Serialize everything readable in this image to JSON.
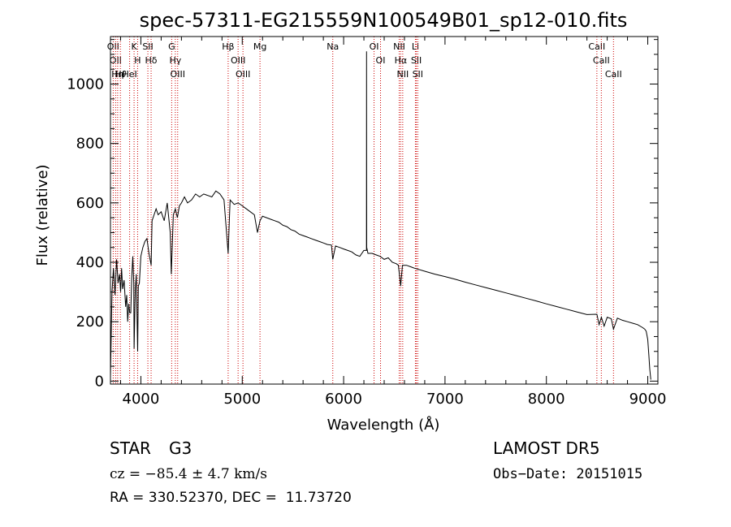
{
  "chart_data": {
    "type": "line",
    "title": "spec-57311-EG215559N100549B01_sp12-010.fits",
    "xlabel": "Wavelength (Å)",
    "ylabel": "Flux (relative)",
    "xlim": [
      3700,
      9100
    ],
    "ylim": [
      -10,
      1160
    ],
    "xticks": [
      4000,
      5000,
      6000,
      7000,
      8000,
      9000
    ],
    "yticks": [
      0,
      200,
      400,
      600,
      800,
      1000
    ],
    "x_minor_step": 200,
    "y_minor_step": 50,
    "grid": false,
    "series": [
      {
        "color": "#000000",
        "x": [
          3700,
          3715,
          3730,
          3745,
          3760,
          3775,
          3790,
          3800,
          3810,
          3820,
          3835,
          3850,
          3860,
          3870,
          3880,
          3890,
          3900,
          3910,
          3920,
          3930,
          3933,
          3945,
          3955,
          3968,
          3975,
          3985,
          4000,
          4020,
          4040,
          4060,
          4080,
          4101,
          4110,
          4130,
          4150,
          4170,
          4200,
          4230,
          4260,
          4290,
          4300,
          4320,
          4340,
          4360,
          4380,
          4400,
          4430,
          4460,
          4500,
          4540,
          4580,
          4620,
          4660,
          4700,
          4740,
          4780,
          4820,
          4861,
          4880,
          4920,
          4960,
          5000,
          5040,
          5080,
          5120,
          5150,
          5175,
          5200,
          5240,
          5280,
          5320,
          5360,
          5400,
          5440,
          5480,
          5520,
          5560,
          5600,
          5640,
          5680,
          5720,
          5760,
          5800,
          5840,
          5880,
          5893,
          5920,
          5960,
          6000,
          6040,
          6080,
          6120,
          6160,
          6200,
          6225,
          6226,
          6228,
          6240,
          6280,
          6320,
          6360,
          6400,
          6440,
          6480,
          6520,
          6540,
          6563,
          6580,
          6620,
          6660,
          6700,
          6800,
          6900,
          7000,
          7100,
          7200,
          7300,
          7400,
          7500,
          7600,
          7700,
          7800,
          7900,
          8000,
          8100,
          8200,
          8300,
          8400,
          8498,
          8520,
          8542,
          8570,
          8600,
          8640,
          8662,
          8700,
          8750,
          8800,
          8850,
          8900,
          8950,
          8970,
          8985,
          9000,
          9010,
          9020,
          9030
        ],
        "y": [
          15,
          300,
          380,
          290,
          410,
          330,
          360,
          300,
          380,
          310,
          340,
          250,
          290,
          200,
          260,
          230,
          230,
          350,
          420,
          330,
          110,
          310,
          360,
          100,
          320,
          330,
          420,
          450,
          470,
          480,
          430,
          390,
          540,
          560,
          580,
          560,
          570,
          540,
          600,
          500,
          360,
          560,
          580,
          550,
          590,
          600,
          620,
          600,
          610,
          630,
          620,
          630,
          625,
          620,
          640,
          630,
          610,
          430,
          610,
          595,
          600,
          590,
          580,
          570,
          560,
          500,
          540,
          555,
          550,
          545,
          540,
          535,
          525,
          520,
          510,
          505,
          495,
          490,
          485,
          480,
          475,
          470,
          465,
          460,
          458,
          410,
          455,
          450,
          445,
          440,
          435,
          425,
          420,
          440,
          440,
          1110,
          450,
          430,
          430,
          425,
          420,
          410,
          415,
          400,
          395,
          390,
          320,
          390,
          390,
          385,
          380,
          370,
          360,
          352,
          343,
          333,
          324,
          315,
          306,
          297,
          288,
          279,
          270,
          260,
          251,
          242,
          233,
          224,
          225,
          190,
          215,
          185,
          215,
          210,
          175,
          212,
          205,
          200,
          195,
          190,
          180,
          175,
          168,
          140,
          90,
          40,
          5
        ]
      }
    ],
    "line_markers": [
      {
        "x": 3727,
        "label": "OII"
      },
      {
        "x": 3751,
        "label": "OII"
      },
      {
        "x": 3771,
        "label": "Hη"
      },
      {
        "x": 3798,
        "label": "H𝜃"
      },
      {
        "x": 3889,
        "label": "HeI"
      },
      {
        "x": 3933,
        "label": "K"
      },
      {
        "x": 3968,
        "label": "H"
      },
      {
        "x": 4069,
        "label": "SII"
      },
      {
        "x": 4101,
        "label": "Hδ"
      },
      {
        "x": 4304,
        "label": "G"
      },
      {
        "x": 4340,
        "label": "Hγ"
      },
      {
        "x": 4363,
        "label": "OIII"
      },
      {
        "x": 4861,
        "label": "Hβ"
      },
      {
        "x": 4959,
        "label": "OIII"
      },
      {
        "x": 5007,
        "label": "OIII"
      },
      {
        "x": 5175,
        "label": "Mg"
      },
      {
        "x": 5893,
        "label": "Na"
      },
      {
        "x": 6300,
        "label": "OI"
      },
      {
        "x": 6364,
        "label": "OI"
      },
      {
        "x": 6548,
        "label": "NII"
      },
      {
        "x": 6563,
        "label": "Hα"
      },
      {
        "x": 6583,
        "label": "NII"
      },
      {
        "x": 6708,
        "label": "Li"
      },
      {
        "x": 6717,
        "label": "SII"
      },
      {
        "x": 6731,
        "label": "SII"
      },
      {
        "x": 8498,
        "label": "CaII"
      },
      {
        "x": 8542,
        "label": "CaII"
      },
      {
        "x": 8662,
        "label": "CaII"
      }
    ],
    "marker_color": "#cc0000"
  },
  "info": {
    "class_type": "STAR",
    "subclass": "G3",
    "survey": "LAMOST DR5",
    "cz": "cz = −85.4 ± 4.7 km/s",
    "obs_date": "Obs−Date: 20151015",
    "coords": "RA = 330.52370, DEC =  11.73720"
  }
}
